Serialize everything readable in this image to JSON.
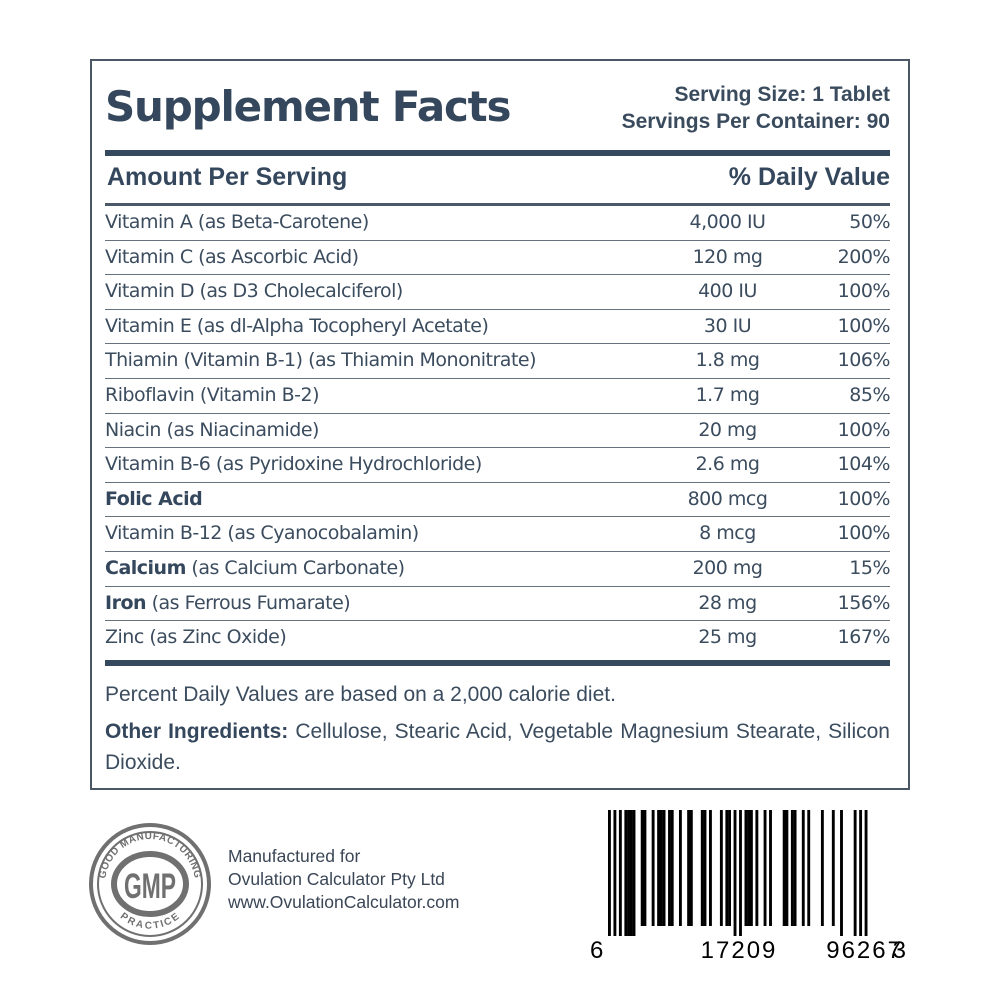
{
  "label": {
    "title": "Supplement Facts",
    "serving_size": "Serving Size: 1 Tablet",
    "servings_per_container": "Servings Per Container: 90",
    "header": {
      "amount_per_serving": "Amount Per Serving",
      "daily_value": "% Daily Value"
    },
    "nutrients": [
      {
        "bold": "",
        "name": "Vitamin A (as Beta-Carotene)",
        "amount": "4,000 IU",
        "dv": "50%"
      },
      {
        "bold": "",
        "name": "Vitamin C (as Ascorbic Acid)",
        "amount": "120 mg",
        "dv": "200%"
      },
      {
        "bold": "",
        "name": "Vitamin D (as D3 Cholecalciferol)",
        "amount": "400 IU",
        "dv": "100%"
      },
      {
        "bold": "",
        "name": "Vitamin E (as dl-Alpha Tocopheryl Acetate)",
        "amount": "30 IU",
        "dv": "100%"
      },
      {
        "bold": "",
        "name": "Thiamin (Vitamin B-1) (as Thiamin Mononitrate)",
        "amount": "1.8 mg",
        "dv": "106%"
      },
      {
        "bold": "",
        "name": "Riboflavin (Vitamin B-2)",
        "amount": "1.7 mg",
        "dv": "85%"
      },
      {
        "bold": "",
        "name": "Niacin (as Niacinamide)",
        "amount": "20 mg",
        "dv": "100%"
      },
      {
        "bold": "",
        "name": "Vitamin B-6 (as Pyridoxine Hydrochloride)",
        "amount": "2.6 mg",
        "dv": "104%"
      },
      {
        "bold": "Folic Acid",
        "name": "",
        "amount": "800 mcg",
        "dv": "100%"
      },
      {
        "bold": "",
        "name": "Vitamin B-12 (as Cyanocobalamin)",
        "amount": "8 mcg",
        "dv": "100%"
      },
      {
        "bold": "Calcium",
        "name": " (as Calcium Carbonate)",
        "amount": "200 mg",
        "dv": "15%"
      },
      {
        "bold": "Iron",
        "name": " (as Ferrous Fumarate)",
        "amount": "28 mg",
        "dv": "156%"
      },
      {
        "bold": "",
        "name": "Zinc (as Zinc Oxide)",
        "amount": "25 mg",
        "dv": "167%"
      }
    ],
    "footnote": "Percent Daily Values are based on a 2,000 calorie diet.",
    "other_ingredients_label": "Other Ingredients:",
    "other_ingredients": " Cellulose, Stearic Acid, Vegetable Magnesium Stearate, Silicon Dioxide."
  },
  "gmp_badge": {
    "center_text": "GMP",
    "top_arc": "GOOD MANUFACTURING",
    "bottom_arc": "PRACTICE",
    "icon": "gmp-seal-icon"
  },
  "manufacturer": {
    "line1": "Manufactured for",
    "line2": "Ovulation Calculator Pty Ltd",
    "line3": "www.OvulationCalculator.com"
  },
  "barcode": {
    "type": "UPC-A",
    "digits": "617209962673",
    "left_digit": "6",
    "left_group": "17209",
    "right_group": "96267",
    "check_digit": "3"
  },
  "colors": {
    "text": "#354a5f",
    "rule": "#364a5f",
    "border": "#4a5866",
    "gmp_gray": "#707070"
  }
}
